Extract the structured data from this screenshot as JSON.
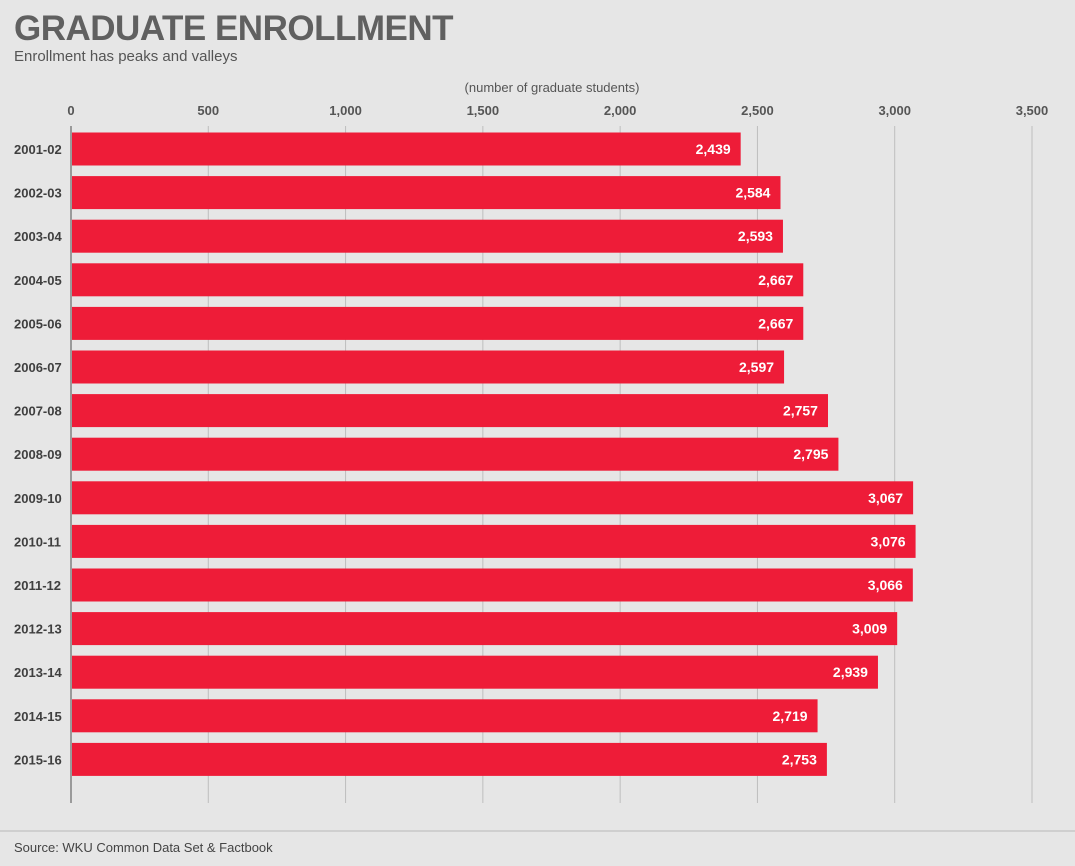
{
  "title": "GRADUATE ENROLLMENT",
  "subtitle": "Enrollment has peaks and valleys",
  "source": "Source: WKU Common Data Set & Factbook",
  "colors": {
    "bar": "#ee1c38",
    "background": "#e6e6e6",
    "grid": "#bdbdbd"
  },
  "chart_data": {
    "type": "bar",
    "orientation": "horizontal",
    "xlabel": "(number of graduate students)",
    "xlim": [
      0,
      3500
    ],
    "x_ticks": [
      0,
      500,
      1000,
      1500,
      2000,
      2500,
      3000,
      3500
    ],
    "x_tick_labels": [
      "0",
      "500",
      "1,000",
      "1,500",
      "2,000",
      "2,500",
      "3,000",
      "3,500"
    ],
    "grid": true,
    "categories": [
      "2001-02",
      "2002-03",
      "2003-04",
      "2004-05",
      "2005-06",
      "2006-07",
      "2007-08",
      "2008-09",
      "2009-10",
      "2010-11",
      "2011-12",
      "2012-13",
      "2013-14",
      "2014-15",
      "2015-16"
    ],
    "values": [
      2439,
      2584,
      2593,
      2667,
      2667,
      2597,
      2757,
      2795,
      3067,
      3076,
      3066,
      3009,
      2939,
      2719,
      2753
    ],
    "value_labels": [
      "2,439",
      "2,584",
      "2,593",
      "2,667",
      "2,667",
      "2,597",
      "2,757",
      "2,795",
      "3,067",
      "3,076",
      "3,066",
      "3,009",
      "2,939",
      "2,719",
      "2,753"
    ]
  }
}
